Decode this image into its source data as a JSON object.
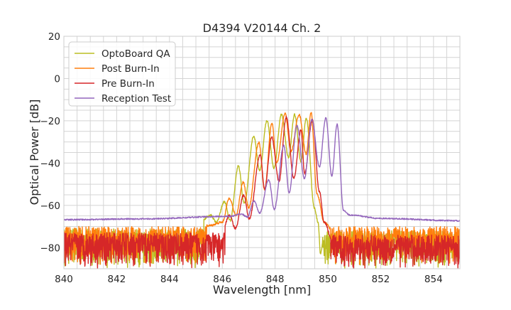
{
  "chart_data": {
    "type": "line",
    "title": "D4394 V20144 Ch. 2",
    "xlabel": "Wavelength [nm]",
    "ylabel": "Optical Power [dB]",
    "xlim": [
      840,
      855
    ],
    "ylim": [
      -90,
      20
    ],
    "xticks": [
      840,
      842,
      844,
      846,
      848,
      850,
      852,
      854
    ],
    "yticks": [
      -80,
      -60,
      -40,
      -20,
      0,
      20
    ],
    "grid": true,
    "grid_minor_x": 0.5,
    "grid_minor_y": 5,
    "legend_position": "top-left",
    "series": [
      {
        "name": "OptoBoard QA",
        "color": "#bcbd22",
        "points": [
          [
            840,
            -78
          ],
          [
            845,
            -70
          ],
          [
            845.56,
            -64.7
          ],
          [
            845.78,
            -68
          ],
          [
            846.08,
            -58.3
          ],
          [
            846.3,
            -67.2
          ],
          [
            846.61,
            -41.5
          ],
          [
            846.83,
            -59
          ],
          [
            847.19,
            -27.2
          ],
          [
            847.42,
            -43.4
          ],
          [
            847.69,
            -19.9
          ],
          [
            847.96,
            -42.3
          ],
          [
            848.24,
            -17.1
          ],
          [
            848.51,
            -37.3
          ],
          [
            848.74,
            -17.1
          ],
          [
            848.98,
            -39.2
          ],
          [
            849.18,
            -18.8
          ],
          [
            849.49,
            -61.3
          ],
          [
            849.63,
            -68
          ],
          [
            849.72,
            -83
          ],
          [
            849.85,
            -74
          ],
          [
            855,
            -78
          ]
        ],
        "noise": [
          {
            "x_range": [
              840,
              845.3
            ],
            "min": -90,
            "max": -71
          },
          {
            "x_range": [
              849.8,
              855
            ],
            "min": -90,
            "max": -72
          }
        ]
      },
      {
        "name": "Post Burn-In",
        "color": "#ff7f0e",
        "points": [
          [
            840,
            -76
          ],
          [
            845.5,
            -69.6
          ],
          [
            846.0,
            -68
          ],
          [
            846.27,
            -56.6
          ],
          [
            846.52,
            -64.7
          ],
          [
            846.79,
            -49
          ],
          [
            847.0,
            -61
          ],
          [
            847.39,
            -30.3
          ],
          [
            847.6,
            -52.4
          ],
          [
            847.88,
            -21
          ],
          [
            848.06,
            -40
          ],
          [
            848.38,
            -16.6
          ],
          [
            848.6,
            -34.5
          ],
          [
            848.91,
            -17.1
          ],
          [
            849.18,
            -35.6
          ],
          [
            849.36,
            -16
          ],
          [
            849.59,
            -54.6
          ],
          [
            849.86,
            -68
          ],
          [
            850.2,
            -72
          ],
          [
            855,
            -76
          ]
        ],
        "noise": [
          {
            "x_range": [
              840,
              845.4
            ],
            "min": -88,
            "max": -70
          },
          {
            "x_range": [
              850.1,
              855
            ],
            "min": -88,
            "max": -70
          }
        ]
      },
      {
        "name": "Pre Burn-In",
        "color": "#d62728",
        "points": [
          [
            840,
            -84
          ],
          [
            846.0,
            -72
          ],
          [
            846.27,
            -64.7
          ],
          [
            846.5,
            -70.8
          ],
          [
            846.81,
            -55.2
          ],
          [
            847.02,
            -66.3
          ],
          [
            847.44,
            -36.1
          ],
          [
            847.6,
            -52.4
          ],
          [
            847.87,
            -27.8
          ],
          [
            848.15,
            -48.5
          ],
          [
            848.42,
            -18.3
          ],
          [
            848.71,
            -47.3
          ],
          [
            848.98,
            -24.4
          ],
          [
            849.12,
            -45.1
          ],
          [
            849.41,
            -19.4
          ],
          [
            849.68,
            -53.5
          ],
          [
            849.86,
            -68
          ],
          [
            850.2,
            -78
          ],
          [
            855,
            -84
          ]
        ],
        "noise": [
          {
            "x_range": [
              840,
              846.1
            ],
            "min": -90,
            "max": -73
          },
          {
            "x_range": [
              850.1,
              855
            ],
            "min": -90,
            "max": -74
          }
        ]
      },
      {
        "name": "Reception Test",
        "color": "#9467bd",
        "points": [
          [
            840,
            -66.8
          ],
          [
            843,
            -66.4
          ],
          [
            846.3,
            -65.2
          ],
          [
            846.72,
            -64.1
          ],
          [
            846.95,
            -65.5
          ],
          [
            847.2,
            -58
          ],
          [
            847.42,
            -63.6
          ],
          [
            847.76,
            -47.9
          ],
          [
            847.97,
            -61.9
          ],
          [
            848.33,
            -31.7
          ],
          [
            848.53,
            -54
          ],
          [
            848.83,
            -22.2
          ],
          [
            849.11,
            -47.3
          ],
          [
            849.39,
            -19.4
          ],
          [
            849.68,
            -41.7
          ],
          [
            849.92,
            -18.6
          ],
          [
            850.15,
            -46.2
          ],
          [
            850.35,
            -21.6
          ],
          [
            850.59,
            -62.4
          ],
          [
            850.83,
            -64.6
          ],
          [
            852,
            -66.2
          ],
          [
            855,
            -67.3
          ]
        ],
        "noise": []
      }
    ]
  }
}
